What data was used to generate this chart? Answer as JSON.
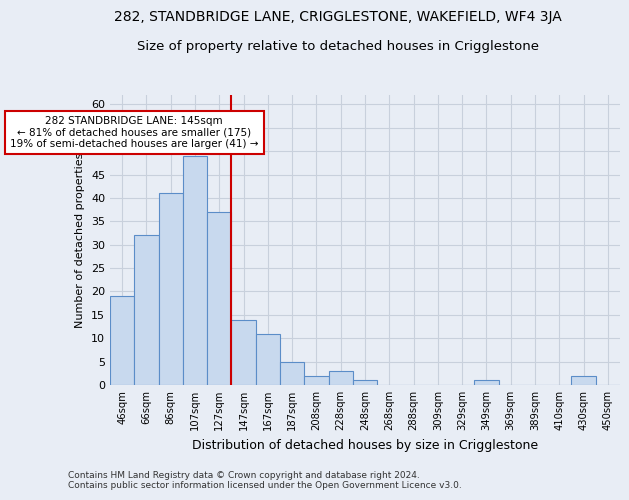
{
  "title_line1": "282, STANDBRIDGE LANE, CRIGGLESTONE, WAKEFIELD, WF4 3JA",
  "title_line2": "Size of property relative to detached houses in Crigglestone",
  "xlabel": "Distribution of detached houses by size in Crigglestone",
  "ylabel": "Number of detached properties",
  "footnote": "Contains HM Land Registry data © Crown copyright and database right 2024.\nContains public sector information licensed under the Open Government Licence v3.0.",
  "categories": [
    "46sqm",
    "66sqm",
    "86sqm",
    "107sqm",
    "127sqm",
    "147sqm",
    "167sqm",
    "187sqm",
    "208sqm",
    "228sqm",
    "248sqm",
    "268sqm",
    "288sqm",
    "309sqm",
    "329sqm",
    "349sqm",
    "369sqm",
    "389sqm",
    "410sqm",
    "430sqm",
    "450sqm"
  ],
  "values": [
    19,
    32,
    41,
    49,
    37,
    14,
    11,
    5,
    2,
    3,
    1,
    0,
    0,
    0,
    0,
    1,
    0,
    0,
    0,
    2,
    0
  ],
  "bar_color": "#c8d9ee",
  "bar_edge_color": "#5b8dc8",
  "ref_line_bar_index": 5,
  "ref_line_color": "#cc0000",
  "annotation_line1": "282 STANDBRIDGE LANE: 145sqm",
  "annotation_line2": "← 81% of detached houses are smaller (175)",
  "annotation_line3": "19% of semi-detached houses are larger (41) →",
  "annotation_box_color": "#ffffff",
  "annotation_box_edge": "#cc0000",
  "ylim": [
    0,
    62
  ],
  "yticks": [
    0,
    5,
    10,
    15,
    20,
    25,
    30,
    35,
    40,
    45,
    50,
    55,
    60
  ],
  "grid_color": "#c8d0dc",
  "bg_color": "#e8edf5",
  "title1_fontsize": 10,
  "title2_fontsize": 9.5,
  "xlabel_fontsize": 9,
  "ylabel_fontsize": 8,
  "footnote_fontsize": 6.5
}
